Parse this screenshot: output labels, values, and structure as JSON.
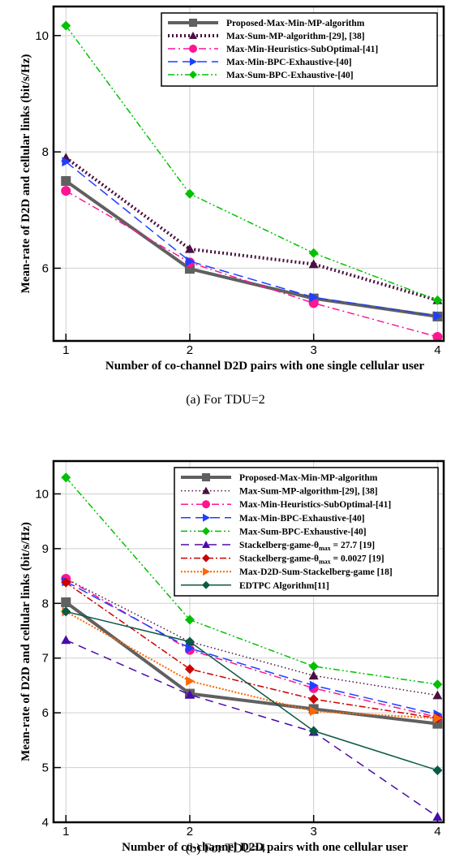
{
  "chart_data": [
    {
      "type": "line",
      "caption": "(a)  For TDU=2",
      "xlabel": "Number of co-channel D2D pairs with one single cellular user",
      "ylabel": "Mean-rate of D2D and cellular links (bit/s/Hz)",
      "x": [
        1,
        2,
        3,
        4
      ],
      "xlim": [
        0.9,
        4.05
      ],
      "ylim": [
        4.75,
        10.5
      ],
      "xticks": [
        "1",
        "2",
        "3",
        "4"
      ],
      "yticks": [
        6,
        8,
        10
      ],
      "legend_position": "top-right",
      "grid": true,
      "series": [
        {
          "name": "Proposed-Max-Min-MP-algorithm",
          "values": [
            7.5,
            5.99,
            5.48,
            5.17
          ],
          "color": "#606060",
          "dash": "",
          "width": 4,
          "marker": "square"
        },
        {
          "name": "Max-Sum-MP-algorithm-[29], [38]",
          "values": [
            7.9,
            6.33,
            6.07,
            5.45
          ],
          "color": "#4a1040",
          "dash": "2,3",
          "width": 4,
          "marker": "triangle"
        },
        {
          "name": "Max-Min-Heuristics-SubOptimal-[41]",
          "values": [
            7.33,
            6.1,
            5.4,
            4.82
          ],
          "color": "#ff1493",
          "dash": "9,4,2,4",
          "width": 1.5,
          "marker": "circle"
        },
        {
          "name": "Max-Min-BPC-Exhaustive-[40]",
          "values": [
            7.83,
            6.12,
            5.5,
            5.18
          ],
          "color": "#1f3fff",
          "dash": "12,6",
          "width": 1.5,
          "marker": "tri-right"
        },
        {
          "name": "Max-Sum-BPC-Exhaustive-[40]",
          "values": [
            10.17,
            7.28,
            6.26,
            5.45
          ],
          "color": "#00c000",
          "dash": "8,3,2,3,2,3",
          "width": 1.5,
          "marker": "diamond"
        }
      ]
    },
    {
      "type": "line",
      "caption": "(b)  For TDU=4",
      "xlabel": "Number of co-channel D2D pairs  with one cellular user",
      "ylabel": "Mean-rate of D2D and cellular links (bit/s/Hz)",
      "x": [
        1,
        2,
        3,
        4
      ],
      "xlim": [
        0.9,
        4.05
      ],
      "ylim": [
        4,
        10.6
      ],
      "xticks": [
        "1",
        "2",
        "3",
        "4"
      ],
      "yticks": [
        4,
        5,
        6,
        7,
        8,
        9,
        10
      ],
      "legend_position": "top-right",
      "grid": true,
      "series": [
        {
          "name": "Proposed-Max-Min-MP-algorithm",
          "values": [
            8.02,
            6.35,
            6.07,
            5.8
          ],
          "color": "#606060",
          "dash": "",
          "width": 4,
          "marker": "square"
        },
        {
          "name": "Max-Sum-MP-algorithm-[29], [38]",
          "values": [
            8.45,
            7.3,
            6.68,
            6.32
          ],
          "color": "#4a1040",
          "dash": "1.5,3",
          "width": 1.5,
          "marker": "triangle"
        },
        {
          "name": "Max-Min-Heuristics-SubOptimal-[41]",
          "values": [
            8.45,
            7.15,
            6.45,
            5.92
          ],
          "color": "#ff1493",
          "dash": "9,4,2,4",
          "width": 1.5,
          "marker": "circle"
        },
        {
          "name": "Max-Min-BPC-Exhaustive-[40]",
          "values": [
            8.4,
            7.18,
            6.5,
            5.97
          ],
          "color": "#1f3fff",
          "dash": "12,6",
          "width": 1.5,
          "marker": "tri-right"
        },
        {
          "name": "Max-Sum-BPC-Exhaustive-[40]",
          "values": [
            10.3,
            7.7,
            6.85,
            6.52
          ],
          "color": "#00c000",
          "dash": "8,3,2,3,2,3",
          "width": 1.5,
          "marker": "diamond"
        },
        {
          "name": "Stackelberg-game-θ",
          "sub": "max",
          "suffix": " = 27.7 [19]",
          "values": [
            7.33,
            6.33,
            5.65,
            4.1
          ],
          "color": "#4b0aa8",
          "dash": "10,7",
          "width": 1.5,
          "marker": "triangle"
        },
        {
          "name": "Stackelberg-game-θ",
          "sub": "max",
          "suffix": " = 0.0027 [19]",
          "values": [
            8.38,
            6.8,
            6.25,
            5.9
          ],
          "color": "#cc0000",
          "dash": "8,3,2,3",
          "width": 1.5,
          "marker": "diamond"
        },
        {
          "name": "Max-D2D-Sum-Stackelberg-game [18]",
          "values": [
            7.85,
            6.58,
            6.03,
            5.9
          ],
          "color": "#ff6600",
          "dash": "2,2",
          "width": 2,
          "marker": "tri-right"
        },
        {
          "name": "EDTPC Algorithm[11]",
          "values": [
            7.85,
            7.3,
            5.67,
            4.95
          ],
          "color": "#0a5a45",
          "dash": "",
          "width": 1.5,
          "marker": "diamond"
        }
      ]
    }
  ]
}
